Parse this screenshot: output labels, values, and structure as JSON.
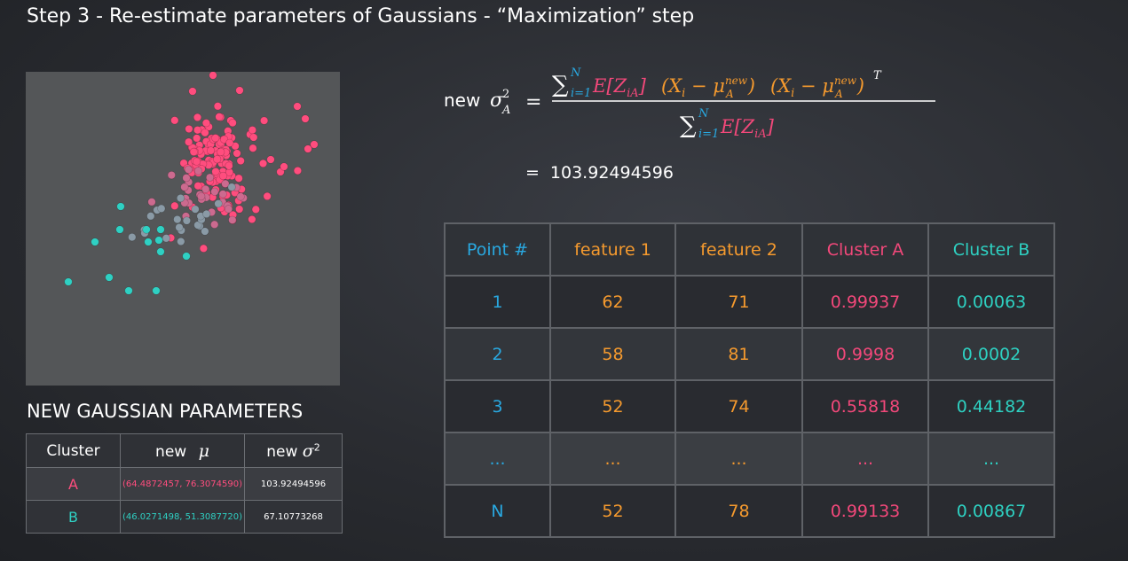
{
  "title": "Step 3 - Re-estimate parameters of Gaussians - “Maximization” step",
  "params": {
    "heading": "NEW GAUSSIAN PARAMETERS",
    "headers": [
      "Cluster",
      "new",
      "new"
    ],
    "mu_symbol": "μ",
    "sigma_symbol": "σ",
    "sigma_exp": "2",
    "rows": [
      {
        "cluster": "A",
        "mu": "(64.4872457, 76.3074590)",
        "sigma2": "103.92494596"
      },
      {
        "cluster": "B",
        "mu": "(46.0271498, 51.3087720)",
        "sigma2": "67.10773268"
      }
    ]
  },
  "formula": {
    "prefix": "new",
    "equals": "=",
    "result": "103.92494596"
  },
  "table": {
    "headers": [
      "Point #",
      "feature 1",
      "feature 2",
      "Cluster A",
      "Cluster B"
    ],
    "rows": [
      [
        "1",
        "62",
        "71",
        "0.99937",
        "0.00063"
      ],
      [
        "2",
        "58",
        "81",
        "0.9998",
        "0.0002"
      ],
      [
        "3",
        "52",
        "74",
        "0.55818",
        "0.44182"
      ],
      [
        "...",
        "...",
        "...",
        "...",
        "..."
      ],
      [
        "N",
        "52",
        "78",
        "0.99133",
        "0.00867"
      ]
    ]
  },
  "colors": {
    "cluster_a": "#ff4d7e",
    "cluster_b": "#2fd0c3",
    "point_header": "#29a8e0",
    "feature": "#f59a2e"
  }
}
